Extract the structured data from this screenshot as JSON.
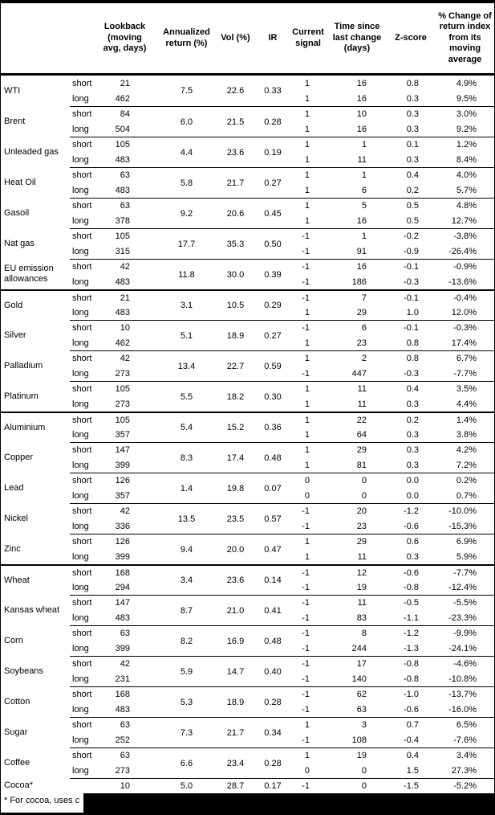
{
  "table": {
    "columns": {
      "lookback": "Lookback (moving avg, days)",
      "annualized": "Annualized return (%)",
      "vol": "Vol (%)",
      "ir": "IR",
      "signal": "Current signal",
      "time_since": "Time since last change (days)",
      "zscore": "Z-score",
      "pct_change": "% Change of return index from its moving average"
    },
    "groups": [
      {
        "name": "WTI",
        "divider": "none",
        "annualized": "7.5",
        "vol": "22.6",
        "ir": "0.33",
        "rows": [
          {
            "horizon": "short",
            "lookback": "21",
            "signal": "1",
            "time": "16",
            "zscore": "0.8",
            "pct": "4.9%"
          },
          {
            "horizon": "long",
            "lookback": "462",
            "signal": "1",
            "time": "16",
            "zscore": "0.3",
            "pct": "9.5%"
          }
        ]
      },
      {
        "name": "Brent",
        "divider": "group",
        "annualized": "6.0",
        "vol": "21.5",
        "ir": "0.28",
        "rows": [
          {
            "horizon": "short",
            "lookback": "84",
            "signal": "1",
            "time": "10",
            "zscore": "0.3",
            "pct": "3.0%"
          },
          {
            "horizon": "long",
            "lookback": "504",
            "signal": "1",
            "time": "16",
            "zscore": "0.3",
            "pct": "9.2%"
          }
        ]
      },
      {
        "name": "Unleaded gas",
        "divider": "group",
        "annualized": "4.4",
        "vol": "23.6",
        "ir": "0.19",
        "rows": [
          {
            "horizon": "short",
            "lookback": "105",
            "signal": "1",
            "time": "1",
            "zscore": "0.1",
            "pct": "1.2%"
          },
          {
            "horizon": "long",
            "lookback": "483",
            "signal": "1",
            "time": "11",
            "zscore": "0.3",
            "pct": "8.4%"
          }
        ]
      },
      {
        "name": "Heat Oil",
        "divider": "group",
        "annualized": "5.8",
        "vol": "21.7",
        "ir": "0.27",
        "rows": [
          {
            "horizon": "short",
            "lookback": "63",
            "signal": "1",
            "time": "1",
            "zscore": "0.4",
            "pct": "4.0%"
          },
          {
            "horizon": "long",
            "lookback": "483",
            "signal": "1",
            "time": "6",
            "zscore": "0.2",
            "pct": "5.7%"
          }
        ]
      },
      {
        "name": "Gasoil",
        "divider": "group",
        "annualized": "9.2",
        "vol": "20.6",
        "ir": "0.45",
        "rows": [
          {
            "horizon": "short",
            "lookback": "63",
            "signal": "1",
            "time": "5",
            "zscore": "0.5",
            "pct": "4.8%"
          },
          {
            "horizon": "long",
            "lookback": "378",
            "signal": "1",
            "time": "16",
            "zscore": "0.5",
            "pct": "12.7%"
          }
        ]
      },
      {
        "name": "Nat gas",
        "divider": "group",
        "annualized": "17.7",
        "vol": "35.3",
        "ir": "0.50",
        "rows": [
          {
            "horizon": "short",
            "lookback": "105",
            "signal": "-1",
            "time": "1",
            "zscore": "-0.2",
            "pct": "-3.8%"
          },
          {
            "horizon": "long",
            "lookback": "315",
            "signal": "-1",
            "time": "91",
            "zscore": "-0.9",
            "pct": "-26.4%"
          }
        ]
      },
      {
        "name": "EU emission allowances",
        "divider": "group",
        "annualized": "11.8",
        "vol": "30.0",
        "ir": "0.39",
        "rows": [
          {
            "horizon": "short",
            "lookback": "42",
            "signal": "-1",
            "time": "16",
            "zscore": "-0.1",
            "pct": "-0.9%"
          },
          {
            "horizon": "long",
            "lookback": "483",
            "signal": "-1",
            "time": "186",
            "zscore": "-0.3",
            "pct": "-13.6%"
          }
        ]
      },
      {
        "name": "Gold",
        "divider": "section",
        "annualized": "3.1",
        "vol": "10.5",
        "ir": "0.29",
        "rows": [
          {
            "horizon": "short",
            "lookback": "21",
            "signal": "-1",
            "time": "7",
            "zscore": "-0.1",
            "pct": "-0.4%"
          },
          {
            "horizon": "long",
            "lookback": "483",
            "signal": "1",
            "time": "29",
            "zscore": "1.0",
            "pct": "12.0%"
          }
        ]
      },
      {
        "name": "Silver",
        "divider": "group",
        "annualized": "5.1",
        "vol": "18.9",
        "ir": "0.27",
        "rows": [
          {
            "horizon": "short",
            "lookback": "10",
            "signal": "-1",
            "time": "6",
            "zscore": "-0.1",
            "pct": "-0.3%"
          },
          {
            "horizon": "long",
            "lookback": "462",
            "signal": "1",
            "time": "23",
            "zscore": "0.8",
            "pct": "17.4%"
          }
        ]
      },
      {
        "name": "Palladium",
        "divider": "group",
        "annualized": "13.4",
        "vol": "22.7",
        "ir": "0.59",
        "rows": [
          {
            "horizon": "short",
            "lookback": "42",
            "signal": "1",
            "time": "2",
            "zscore": "0.8",
            "pct": "6.7%"
          },
          {
            "horizon": "long",
            "lookback": "273",
            "signal": "-1",
            "time": "447",
            "zscore": "-0.3",
            "pct": "-7.7%"
          }
        ]
      },
      {
        "name": "Platinum",
        "divider": "group",
        "annualized": "5.5",
        "vol": "18.2",
        "ir": "0.30",
        "rows": [
          {
            "horizon": "short",
            "lookback": "105",
            "signal": "1",
            "time": "11",
            "zscore": "0.4",
            "pct": "3.5%"
          },
          {
            "horizon": "long",
            "lookback": "273",
            "signal": "1",
            "time": "11",
            "zscore": "0.3",
            "pct": "4.4%"
          }
        ]
      },
      {
        "name": "Aluminium",
        "divider": "section",
        "annualized": "5.4",
        "vol": "15.2",
        "ir": "0.36",
        "rows": [
          {
            "horizon": "short",
            "lookback": "105",
            "signal": "1",
            "time": "22",
            "zscore": "0.2",
            "pct": "1.4%"
          },
          {
            "horizon": "long",
            "lookback": "357",
            "signal": "1",
            "time": "64",
            "zscore": "0.3",
            "pct": "3.8%"
          }
        ]
      },
      {
        "name": "Copper",
        "divider": "group",
        "annualized": "8.3",
        "vol": "17.4",
        "ir": "0.48",
        "rows": [
          {
            "horizon": "short",
            "lookback": "147",
            "signal": "1",
            "time": "29",
            "zscore": "0.3",
            "pct": "4.2%"
          },
          {
            "horizon": "long",
            "lookback": "399",
            "signal": "1",
            "time": "81",
            "zscore": "0.3",
            "pct": "7.2%"
          }
        ]
      },
      {
        "name": "Lead",
        "divider": "group",
        "annualized": "1.4",
        "vol": "19.8",
        "ir": "0.07",
        "rows": [
          {
            "horizon": "short",
            "lookback": "126",
            "signal": "0",
            "time": "0",
            "zscore": "0.0",
            "pct": "0.2%"
          },
          {
            "horizon": "long",
            "lookback": "357",
            "signal": "0",
            "time": "0",
            "zscore": "0.0",
            "pct": "0.7%"
          }
        ]
      },
      {
        "name": "Nickel",
        "divider": "group",
        "annualized": "13.5",
        "vol": "23.5",
        "ir": "0.57",
        "rows": [
          {
            "horizon": "short",
            "lookback": "42",
            "signal": "-1",
            "time": "20",
            "zscore": "-1.2",
            "pct": "-10.0%"
          },
          {
            "horizon": "long",
            "lookback": "336",
            "signal": "-1",
            "time": "23",
            "zscore": "-0.6",
            "pct": "-15.3%"
          }
        ]
      },
      {
        "name": "Zinc",
        "divider": "group",
        "annualized": "9.4",
        "vol": "20.0",
        "ir": "0.47",
        "rows": [
          {
            "horizon": "short",
            "lookback": "126",
            "signal": "1",
            "time": "29",
            "zscore": "0.6",
            "pct": "6.9%"
          },
          {
            "horizon": "long",
            "lookback": "399",
            "signal": "1",
            "time": "11",
            "zscore": "0.3",
            "pct": "5.9%"
          }
        ]
      },
      {
        "name": "Wheat",
        "divider": "section",
        "annualized": "3.4",
        "vol": "23.6",
        "ir": "0.14",
        "rows": [
          {
            "horizon": "short",
            "lookback": "168",
            "signal": "-1",
            "time": "12",
            "zscore": "-0.6",
            "pct": "-7.7%"
          },
          {
            "horizon": "long",
            "lookback": "294",
            "signal": "-1",
            "time": "19",
            "zscore": "-0.8",
            "pct": "-12.4%"
          }
        ]
      },
      {
        "name": "Kansas wheat",
        "divider": "group",
        "annualized": "8.7",
        "vol": "21.0",
        "ir": "0.41",
        "rows": [
          {
            "horizon": "short",
            "lookback": "147",
            "signal": "-1",
            "time": "11",
            "zscore": "-0.5",
            "pct": "-5.5%"
          },
          {
            "horizon": "long",
            "lookback": "483",
            "signal": "-1",
            "time": "83",
            "zscore": "-1.1",
            "pct": "-23.3%"
          }
        ]
      },
      {
        "name": "Corn",
        "divider": "group",
        "annualized": "8.2",
        "vol": "16.9",
        "ir": "0.48",
        "rows": [
          {
            "horizon": "short",
            "lookback": "63",
            "signal": "-1",
            "time": "8",
            "zscore": "-1.2",
            "pct": "-9.9%"
          },
          {
            "horizon": "long",
            "lookback": "399",
            "signal": "-1",
            "time": "244",
            "zscore": "-1.3",
            "pct": "-24.1%"
          }
        ]
      },
      {
        "name": "Soybeans",
        "divider": "group",
        "annualized": "5.9",
        "vol": "14.7",
        "ir": "0.40",
        "rows": [
          {
            "horizon": "short",
            "lookback": "42",
            "signal": "-1",
            "time": "17",
            "zscore": "-0.8",
            "pct": "-4.6%"
          },
          {
            "horizon": "long",
            "lookback": "231",
            "signal": "-1",
            "time": "140",
            "zscore": "-0.8",
            "pct": "-10.8%"
          }
        ]
      },
      {
        "name": "Cotton",
        "divider": "group",
        "annualized": "5.3",
        "vol": "18.9",
        "ir": "0.28",
        "rows": [
          {
            "horizon": "short",
            "lookback": "168",
            "signal": "-1",
            "time": "62",
            "zscore": "-1.0",
            "pct": "-13.7%"
          },
          {
            "horizon": "long",
            "lookback": "483",
            "signal": "-1",
            "time": "63",
            "zscore": "-0.6",
            "pct": "-16.0%"
          }
        ]
      },
      {
        "name": "Sugar",
        "divider": "group",
        "annualized": "7.3",
        "vol": "21.7",
        "ir": "0.34",
        "rows": [
          {
            "horizon": "short",
            "lookback": "63",
            "signal": "1",
            "time": "3",
            "zscore": "0.7",
            "pct": "6.5%"
          },
          {
            "horizon": "long",
            "lookback": "252",
            "signal": "-1",
            "time": "108",
            "zscore": "-0.4",
            "pct": "-7.6%"
          }
        ]
      },
      {
        "name": "Coffee",
        "divider": "group",
        "annualized": "6.6",
        "vol": "23.4",
        "ir": "0.28",
        "rows": [
          {
            "horizon": "short",
            "lookback": "63",
            "signal": "1",
            "time": "19",
            "zscore": "0.4",
            "pct": "3.4%"
          },
          {
            "horizon": "long",
            "lookback": "273",
            "signal": "0",
            "time": "0",
            "zscore": "1.5",
            "pct": "27.3%"
          }
        ]
      },
      {
        "name": "Cocoa*",
        "divider": "group",
        "annualized": "5.0",
        "vol": "28.7",
        "ir": "0.17",
        "rows": [
          {
            "horizon": "",
            "lookback": "10",
            "signal": "-1",
            "time": "0",
            "zscore": "-1.5",
            "pct": "-5.2%"
          }
        ]
      }
    ]
  },
  "footnote": {
    "visible_text": "* For cocoa, uses c",
    "redacted": true
  }
}
